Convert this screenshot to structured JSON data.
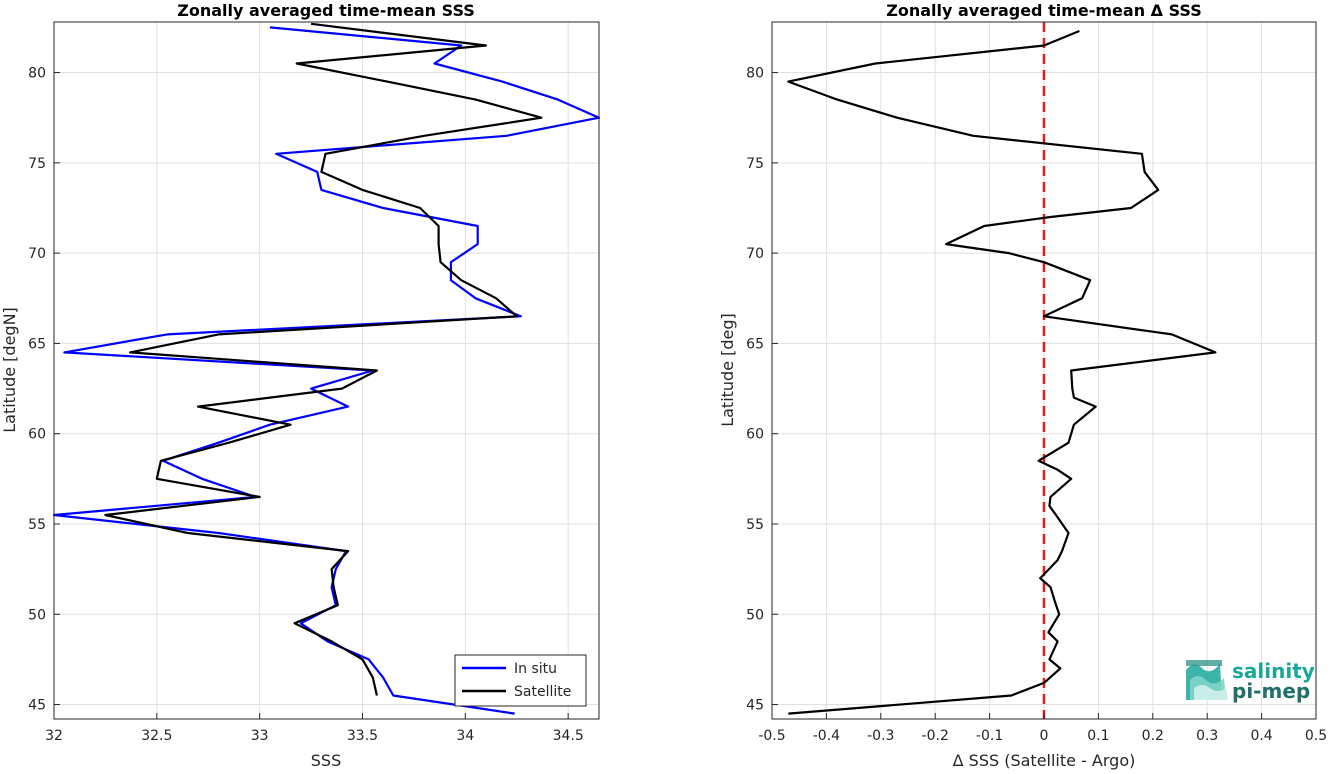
{
  "colors": {
    "insitu": "#0000ff",
    "satellite": "#000000",
    "zero_line": "#e41a1c",
    "grid": "#e0e0e0",
    "logo_teal": "#1aa79a",
    "logo_dark": "#1f6f6a"
  },
  "logo": {
    "line1": "salinity",
    "line2": "pi-mep",
    "icon": "salinity-wave-icon"
  },
  "chart_data": [
    {
      "type": "line",
      "title": "Zonally averaged time-mean SSS",
      "xlabel": "SSS",
      "ylabel": "Latitude [degN]",
      "xlim": [
        32,
        34.65
      ],
      "ylim": [
        44.2,
        82.8
      ],
      "xticks": [
        32,
        32.5,
        33,
        33.5,
        34,
        34.5
      ],
      "xtick_labels": [
        "32",
        "32.5",
        "33",
        "33.5",
        "34",
        "34.5"
      ],
      "yticks": [
        45,
        50,
        55,
        60,
        65,
        70,
        75,
        80
      ],
      "ytick_labels": [
        "45",
        "50",
        "55",
        "60",
        "65",
        "70",
        "75",
        "80"
      ],
      "grid": true,
      "legend_position": "bottom-right",
      "series": [
        {
          "name": "In situ",
          "color_key": "insitu",
          "points": [
            [
              34.24,
              44.5
            ],
            [
              33.65,
              45.5
            ],
            [
              33.6,
              46.5
            ],
            [
              33.53,
              47.5
            ],
            [
              33.33,
              48.5
            ],
            [
              33.2,
              49.5
            ],
            [
              33.37,
              50.5
            ],
            [
              33.35,
              51.5
            ],
            [
              33.37,
              52.5
            ],
            [
              33.42,
              53.5
            ],
            [
              32.8,
              54.5
            ],
            [
              32,
              55.5
            ],
            [
              32.98,
              56.5
            ],
            [
              32.72,
              57.5
            ],
            [
              32.53,
              58.5
            ],
            [
              32.8,
              59.5
            ],
            [
              33.05,
              60.5
            ],
            [
              33.43,
              61.5
            ],
            [
              33.25,
              62.5
            ],
            [
              33.55,
              63.5
            ],
            [
              32.05,
              64.5
            ],
            [
              32.55,
              65.5
            ],
            [
              34.27,
              66.5
            ],
            [
              34.05,
              67.5
            ],
            [
              33.93,
              68.5
            ],
            [
              33.93,
              69.5
            ],
            [
              34.06,
              70.5
            ],
            [
              34.06,
              71.5
            ],
            [
              33.6,
              72.5
            ],
            [
              33.3,
              73.5
            ],
            [
              33.28,
              74.5
            ],
            [
              33.08,
              75.5
            ],
            [
              34.2,
              76.5
            ],
            [
              34.65,
              77.5
            ],
            [
              34.45,
              78.5
            ],
            [
              34.18,
              79.5
            ],
            [
              33.85,
              80.5
            ],
            [
              33.98,
              81.5
            ],
            [
              33.05,
              82.5
            ]
          ]
        },
        {
          "name": "Satellite",
          "color_key": "satellite",
          "points": [
            [
              33.57,
              45.5
            ],
            [
              33.55,
              46.5
            ],
            [
              33.5,
              47.5
            ],
            [
              33.35,
              48.5
            ],
            [
              33.17,
              49.5
            ],
            [
              33.38,
              50.5
            ],
            [
              33.36,
              51.5
            ],
            [
              33.35,
              52.5
            ],
            [
              33.43,
              53.5
            ],
            [
              32.65,
              54.5
            ],
            [
              32.25,
              55.5
            ],
            [
              33,
              56.5
            ],
            [
              32.5,
              57.5
            ],
            [
              32.52,
              58.5
            ],
            [
              32.85,
              59.5
            ],
            [
              33.15,
              60.5
            ],
            [
              32.7,
              61.5
            ],
            [
              33.4,
              62.5
            ],
            [
              33.57,
              63.5
            ],
            [
              32.37,
              64.5
            ],
            [
              32.8,
              65.5
            ],
            [
              34.25,
              66.5
            ],
            [
              34.15,
              67.5
            ],
            [
              33.98,
              68.5
            ],
            [
              33.88,
              69.5
            ],
            [
              33.87,
              70.5
            ],
            [
              33.87,
              71.5
            ],
            [
              33.78,
              72.5
            ],
            [
              33.5,
              73.5
            ],
            [
              33.3,
              74.5
            ],
            [
              33.32,
              75.5
            ],
            [
              33.8,
              76.5
            ],
            [
              34.37,
              77.5
            ],
            [
              34.05,
              78.5
            ],
            [
              33.62,
              79.5
            ],
            [
              33.18,
              80.5
            ],
            [
              34.1,
              81.5
            ],
            [
              33.25,
              82.7
            ]
          ]
        }
      ]
    },
    {
      "type": "line",
      "title": "Zonally averaged time-mean Δ SSS",
      "xlabel": "Δ SSS (Satellite - Argo)",
      "ylabel": "Latitude [deg]",
      "xlim": [
        -0.5,
        0.5
      ],
      "ylim": [
        44.2,
        82.8
      ],
      "xticks": [
        -0.5,
        -0.4,
        -0.3,
        -0.2,
        -0.1,
        0,
        0.1,
        0.2,
        0.3,
        0.4,
        0.5
      ],
      "xtick_labels": [
        "-0.5",
        "-0.4",
        "-0.3",
        "-0.2",
        "-0.1",
        "0",
        "0.1",
        "0.2",
        "0.3",
        "0.4",
        "0.5"
      ],
      "yticks": [
        45,
        50,
        55,
        60,
        65,
        70,
        75,
        80
      ],
      "ytick_labels": [
        "45",
        "50",
        "55",
        "60",
        "65",
        "70",
        "75",
        "80"
      ],
      "grid": true,
      "reference_line_x": 0,
      "series": [
        {
          "color_key": "satellite",
          "points": [
            [
              -0.47,
              44.5
            ],
            [
              -0.06,
              45.5
            ],
            [
              0,
              46.2
            ],
            [
              0.03,
              47.0
            ],
            [
              0.01,
              47.5
            ],
            [
              0.025,
              48.5
            ],
            [
              0.008,
              49.0
            ],
            [
              0.028,
              50.0
            ],
            [
              0.02,
              50.7
            ],
            [
              0.012,
              51.5
            ],
            [
              -0.007,
              52.0
            ],
            [
              0.025,
              53.0
            ],
            [
              0.033,
              53.5
            ],
            [
              0.045,
              54.5
            ],
            [
              0.022,
              55.5
            ],
            [
              0.01,
              56.0
            ],
            [
              0.012,
              56.5
            ],
            [
              0.05,
              57.5
            ],
            [
              0.025,
              58.0
            ],
            [
              -0.01,
              58.5
            ],
            [
              0.045,
              59.5
            ],
            [
              0.055,
              60.5
            ],
            [
              0.095,
              61.5
            ],
            [
              0.055,
              62.0
            ],
            [
              0.052,
              62.5
            ],
            [
              0.05,
              63.5
            ],
            [
              0.315,
              64.5
            ],
            [
              0.235,
              65.5
            ],
            [
              0,
              66.5
            ],
            [
              0.07,
              67.5
            ],
            [
              0.085,
              68.5
            ],
            [
              0,
              69.5
            ],
            [
              -0.065,
              70.0
            ],
            [
              -0.18,
              70.5
            ],
            [
              -0.11,
              71.5
            ],
            [
              0.012,
              72.0
            ],
            [
              0.16,
              72.5
            ],
            [
              0.21,
              73.5
            ],
            [
              0.185,
              74.5
            ],
            [
              0.18,
              75.5
            ],
            [
              -0.13,
              76.5
            ],
            [
              -0.27,
              77.5
            ],
            [
              -0.38,
              78.5
            ],
            [
              -0.47,
              79.5
            ],
            [
              -0.31,
              80.5
            ],
            [
              0,
              81.5
            ],
            [
              0.065,
              82.3
            ]
          ]
        }
      ]
    }
  ]
}
